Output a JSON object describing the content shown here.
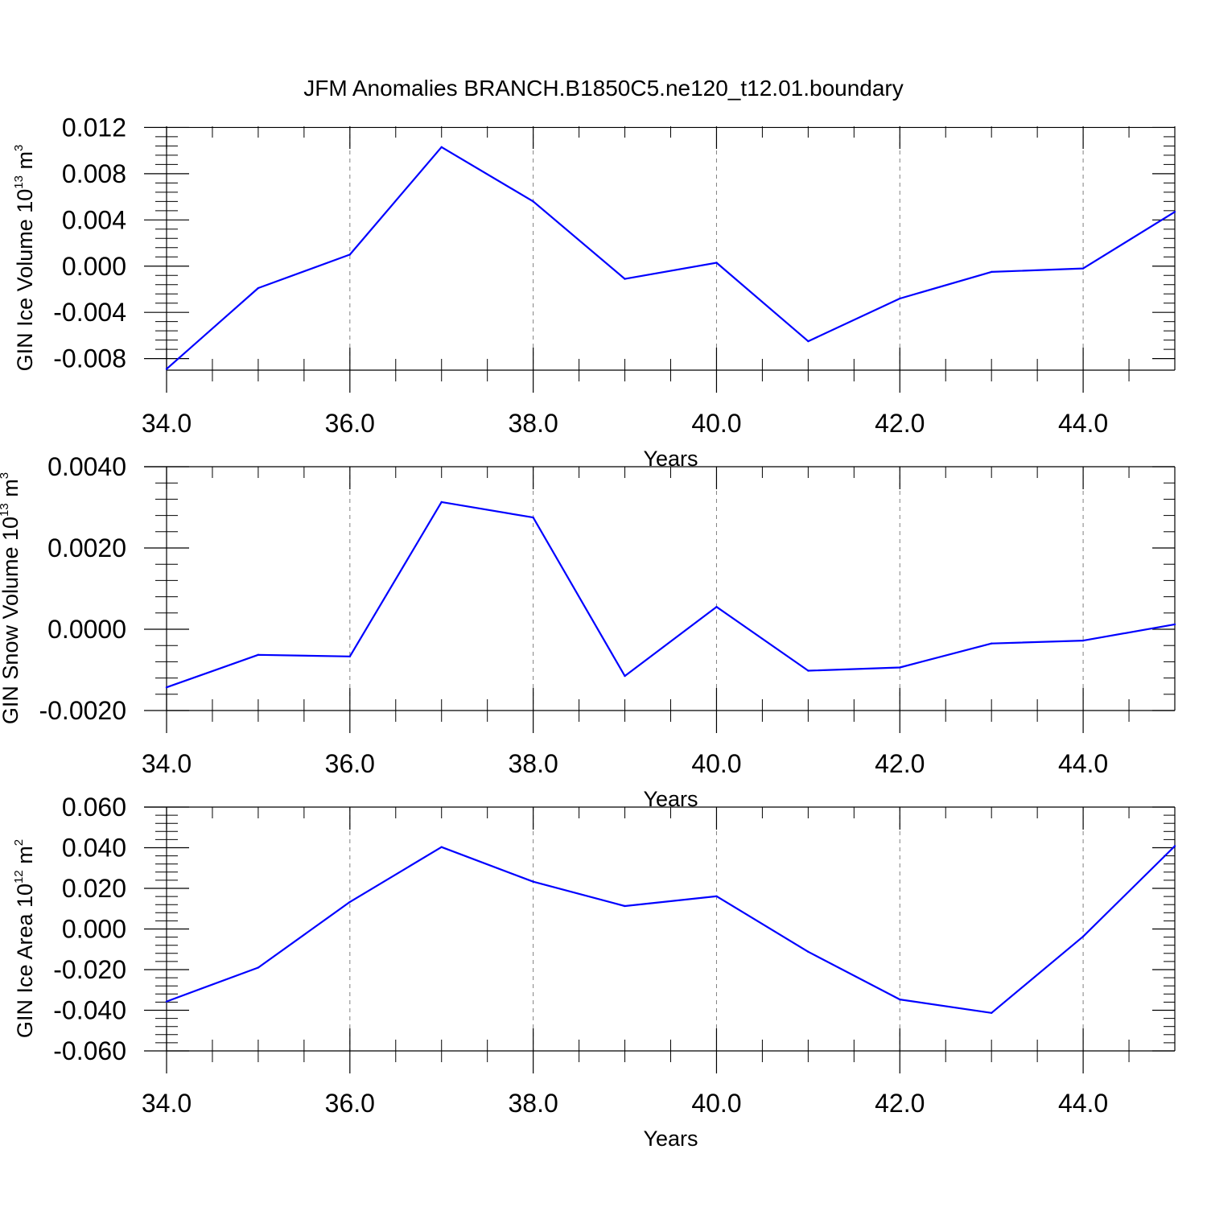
{
  "figure": {
    "title": "JFM Anomalies BRANCH.B1850C5.ne120_t12.01.boundary",
    "line_color": "#0000ff",
    "grid_color": "#808080",
    "axis_color": "#000000"
  },
  "chart_data": [
    {
      "type": "line",
      "title": "JFM Anomalies BRANCH.B1850C5.ne120_t12.01.boundary",
      "xlabel": "Years",
      "ylabel": {
        "main": "GIN Ice Volume 10",
        "exponent": "13",
        "unit": " m",
        "unit_exponent": "3"
      },
      "xlim": [
        34,
        45
      ],
      "ylim": [
        -0.009,
        0.0121
      ],
      "x_ticks": [
        34,
        36,
        38,
        40,
        42,
        44
      ],
      "x_tick_labels": [
        "34.0",
        "36.0",
        "38.0",
        "40.0",
        "42.0",
        "44.0"
      ],
      "y_ticks": [
        -0.008,
        -0.004,
        0.0,
        0.004,
        0.008,
        0.012
      ],
      "y_tick_labels": [
        "-0.008",
        "-0.004",
        "0.000",
        "0.004",
        "0.008",
        "0.012"
      ],
      "grid": "vertical dashed at major x ticks",
      "series": [
        {
          "x": [
            34,
            35,
            36,
            37,
            38,
            39,
            40,
            41,
            42,
            43,
            44,
            45
          ],
          "y": [
            -0.0089,
            -0.0019,
            0.001,
            0.0103,
            0.0056,
            -0.0011,
            0.0003,
            -0.0065,
            -0.0028,
            -0.0005,
            -0.0002,
            0.0047
          ]
        }
      ]
    },
    {
      "type": "line",
      "xlabel": "Years",
      "ylabel": {
        "main": "GIN Snow Volume 10",
        "exponent": "13",
        "unit": " m",
        "unit_exponent": "3"
      },
      "xlim": [
        34,
        45
      ],
      "ylim": [
        -0.002,
        0.004
      ],
      "x_ticks": [
        34,
        36,
        38,
        40,
        42,
        44
      ],
      "x_tick_labels": [
        "34.0",
        "36.0",
        "38.0",
        "40.0",
        "42.0",
        "44.0"
      ],
      "y_ticks": [
        -0.002,
        0.0,
        0.002,
        0.004
      ],
      "y_tick_labels": [
        "-0.0020",
        "0.0000",
        "0.0020",
        "0.0040"
      ],
      "grid": "vertical dashed at major x ticks",
      "series": [
        {
          "x": [
            34,
            35,
            36,
            37,
            38,
            39,
            40,
            41,
            42,
            43,
            44,
            45
          ],
          "y": [
            -0.00143,
            -0.00063,
            -0.00067,
            0.00313,
            0.00275,
            -0.00115,
            0.00055,
            -0.00102,
            -0.00094,
            -0.00035,
            -0.00028,
            0.00012
          ]
        }
      ]
    },
    {
      "type": "line",
      "xlabel": "Years",
      "ylabel": {
        "main": "GIN Ice Area 10",
        "exponent": "12",
        "unit": " m",
        "unit_exponent": "2"
      },
      "xlim": [
        34,
        45
      ],
      "ylim": [
        -0.06,
        0.06
      ],
      "x_ticks": [
        34,
        36,
        38,
        40,
        42,
        44
      ],
      "x_tick_labels": [
        "34.0",
        "36.0",
        "38.0",
        "40.0",
        "42.0",
        "44.0"
      ],
      "y_ticks": [
        -0.06,
        -0.04,
        -0.02,
        0.0,
        0.02,
        0.04,
        0.06
      ],
      "y_tick_labels": [
        "-0.060",
        "-0.040",
        "-0.020",
        "0.000",
        "0.020",
        "0.040",
        "0.060"
      ],
      "grid": "vertical dashed at major x ticks",
      "series": [
        {
          "x": [
            34,
            35,
            36,
            37,
            38,
            39,
            40,
            41,
            42,
            43,
            44,
            45
          ],
          "y": [
            -0.0357,
            -0.019,
            0.0133,
            0.0403,
            0.0233,
            0.0113,
            0.0161,
            -0.0112,
            -0.0347,
            -0.0413,
            -0.0037,
            0.0408
          ]
        }
      ]
    }
  ]
}
